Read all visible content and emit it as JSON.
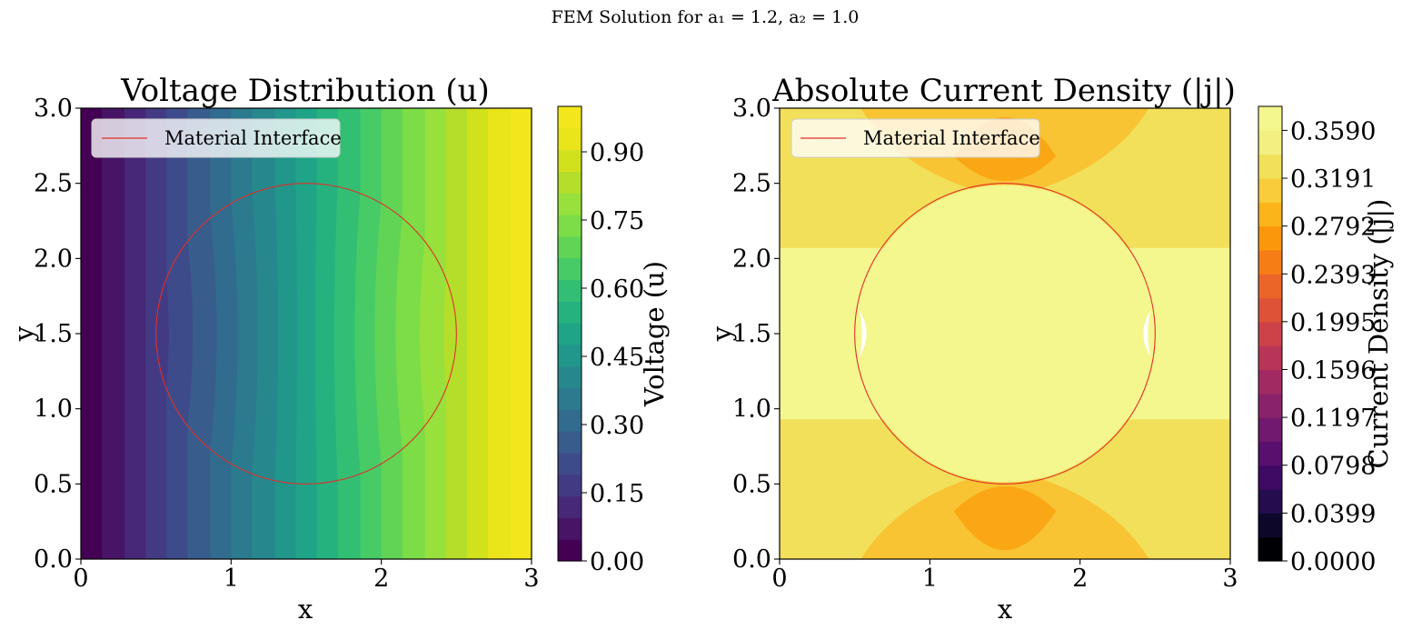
{
  "figure": {
    "suptitle": "FEM Solution for a₁ = 1.2, a₂ = 1.0"
  },
  "chart_data": [
    {
      "type": "heatmap",
      "title": "Voltage Distribution (u)",
      "xlabel": "x",
      "ylabel": "y",
      "xlim": [
        0,
        3
      ],
      "ylim": [
        0,
        3
      ],
      "x_ticks": [
        "0",
        "1",
        "2",
        "3"
      ],
      "y_ticks": [
        "0.0",
        "0.5",
        "1.0",
        "1.5",
        "2.0",
        "2.5",
        "3.0"
      ],
      "legend": {
        "label": "Material Interface",
        "position": "upper-left",
        "color": "#e0302a"
      },
      "interface_circle": {
        "center": [
          1.5,
          1.5
        ],
        "radius": 1.0
      },
      "colormap": "viridis",
      "colorbar": {
        "label": "Voltage (u)",
        "ticks": [
          "0.00",
          "0.15",
          "0.30",
          "0.45",
          "0.60",
          "0.75",
          "0.90"
        ],
        "range": [
          0,
          1
        ],
        "levels": 20
      },
      "bands_x_edges": [
        0.0,
        0.14,
        0.29,
        0.43,
        0.57,
        0.71,
        0.86,
        1.0,
        1.14,
        1.29,
        1.43,
        1.57,
        1.71,
        1.86,
        2.0,
        2.14,
        2.29,
        2.43,
        2.57,
        2.71,
        2.86,
        3.0
      ],
      "band_colors": [
        "#440154",
        "#471466",
        "#472777",
        "#433a84",
        "#3e4b8a",
        "#385c8c",
        "#316b8e",
        "#2b7a8e",
        "#26888d",
        "#21968b",
        "#1fa487",
        "#25b27f",
        "#32bf74",
        "#46cb67",
        "#61d456",
        "#7cdd46",
        "#98e03c",
        "#b5de2b",
        "#d1e11c",
        "#eae51a",
        "#f3e71c"
      ]
    },
    {
      "type": "heatmap",
      "title": "Absolute Current Density (|j|)",
      "xlabel": "x",
      "ylabel": "y",
      "xlim": [
        0,
        3
      ],
      "ylim": [
        0,
        3
      ],
      "x_ticks": [
        "0",
        "1",
        "2",
        "3"
      ],
      "y_ticks": [
        "0.0",
        "0.5",
        "1.0",
        "1.5",
        "2.0",
        "2.5",
        "3.0"
      ],
      "legend": {
        "label": "Material Interface",
        "position": "upper-left",
        "color": "#e0302a"
      },
      "interface_circle": {
        "center": [
          1.5,
          1.5
        ],
        "radius": 1.0
      },
      "colormap": "inferno",
      "colorbar": {
        "label": "Current Density (|j|)",
        "ticks": [
          "0.0000",
          "0.0399",
          "0.0798",
          "0.1197",
          "0.1596",
          "0.1995",
          "0.2393",
          "0.2792",
          "0.3191",
          "0.3590"
        ],
        "range": [
          0,
          0.379
        ],
        "levels": 19
      },
      "regions": {
        "background": "#f2e05a",
        "inner": "#f4f68e",
        "middle_band": "#f4f68e",
        "corner_lobes": "#f8c433",
        "lobe_cores": "#fba614"
      },
      "band_colors": [
        "#000004",
        "#0d0829",
        "#240c4f",
        "#3f0a64",
        "#580f6d",
        "#71196e",
        "#89226a",
        "#a12a63",
        "#b83558",
        "#cc4248",
        "#de5238",
        "#ec6528",
        "#f67d15",
        "#fa970b",
        "#fbb41a",
        "#f8cc3a",
        "#f2e05a",
        "#f3ef80",
        "#f4f68e"
      ]
    }
  ]
}
